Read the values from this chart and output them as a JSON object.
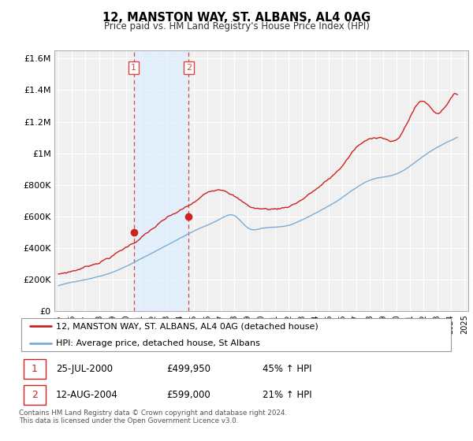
{
  "title": "12, MANSTON WAY, ST. ALBANS, AL4 0AG",
  "subtitle": "Price paid vs. HM Land Registry's House Price Index (HPI)",
  "legend_line1": "12, MANSTON WAY, ST. ALBANS, AL4 0AG (detached house)",
  "legend_line2": "HPI: Average price, detached house, St Albans",
  "annotation1_label": "1",
  "annotation1_date": "25-JUL-2000",
  "annotation1_price": "£499,950",
  "annotation1_hpi": "45% ↑ HPI",
  "annotation2_label": "2",
  "annotation2_date": "12-AUG-2004",
  "annotation2_price": "£599,000",
  "annotation2_hpi": "21% ↑ HPI",
  "footnote": "Contains HM Land Registry data © Crown copyright and database right 2024.\nThis data is licensed under the Open Government Licence v3.0.",
  "sale1_year": 2000.56,
  "sale1_price": 499950,
  "sale2_year": 2004.62,
  "sale2_price": 599000,
  "hpi_color": "#7aacd6",
  "price_color": "#cc2222",
  "sale_dot_color": "#cc2222",
  "vline_color": "#dd4444",
  "shade_color": "#ddeeff",
  "bg_color": "#f0f0f0",
  "grid_color": "#ffffff",
  "ylim": [
    0,
    1650000
  ],
  "yticks": [
    0,
    200000,
    400000,
    600000,
    800000,
    1000000,
    1200000,
    1400000,
    1600000
  ],
  "ytick_labels": [
    "£0",
    "£200K",
    "£400K",
    "£600K",
    "£800K",
    "£1M",
    "£1.2M",
    "£1.4M",
    "£1.6M"
  ],
  "xmin": 1994.7,
  "xmax": 2025.3
}
